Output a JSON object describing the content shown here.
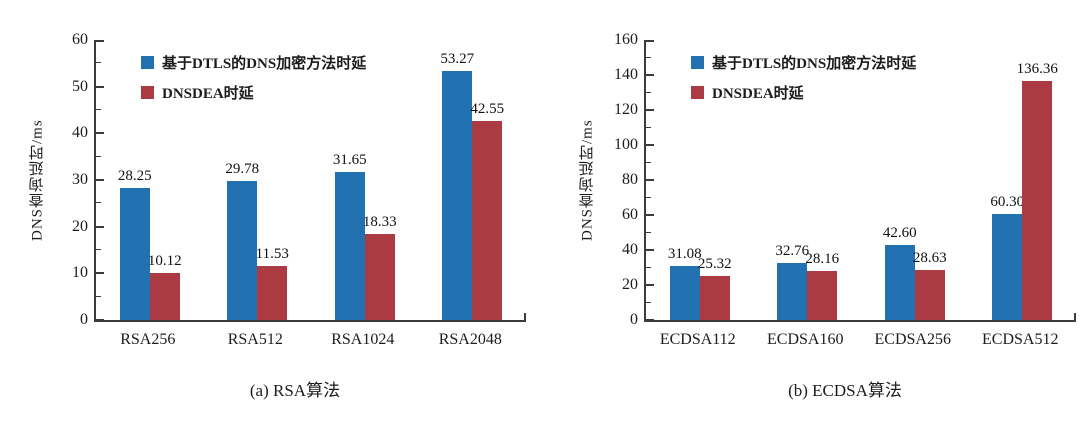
{
  "colors": {
    "series_blue": "#2272b2",
    "series_red": "#ab3a43",
    "axis": "#3c3c3c",
    "text": "#1c1c1c",
    "background": "#ffffff"
  },
  "chart_data": [
    {
      "type": "bar",
      "caption": "(a) RSA算法",
      "ylabel": "DNS查询延时/ms",
      "ylim": [
        0,
        60
      ],
      "ytick_step": 10,
      "yticks": [
        0,
        10,
        20,
        30,
        40,
        50,
        60
      ],
      "grid": false,
      "legend_position": "top-left-inside",
      "categories": [
        "RSA256",
        "RSA512",
        "RSA1024",
        "RSA2048"
      ],
      "series": [
        {
          "name": "基于DTLS的DNS加密方法时延",
          "color": "#2272b2",
          "values": [
            28.25,
            29.78,
            31.65,
            53.27
          ],
          "labels": [
            "28.25",
            "29.78",
            "31.65",
            "53.27"
          ]
        },
        {
          "name": "DNSDEA时延",
          "color": "#ab3a43",
          "values": [
            10.12,
            11.53,
            18.33,
            42.55
          ],
          "labels": [
            "10.12",
            "11.53",
            "18.33",
            "42.55"
          ]
        }
      ]
    },
    {
      "type": "bar",
      "caption": "(b) ECDSA算法",
      "ylabel": "DNS查询延时/ms",
      "ylim": [
        0,
        160
      ],
      "ytick_step": 20,
      "yticks": [
        0,
        20,
        40,
        60,
        80,
        100,
        120,
        140,
        160
      ],
      "grid": false,
      "legend_position": "top-left-inside",
      "categories": [
        "ECDSA112",
        "ECDSA160",
        "ECDSA256",
        "ECDSA512"
      ],
      "series": [
        {
          "name": "基于DTLS的DNS加密方法时延",
          "color": "#2272b2",
          "values": [
            31.08,
            32.76,
            42.6,
            60.3
          ],
          "labels": [
            "31.08",
            "32.76",
            "42.60",
            "60.30"
          ]
        },
        {
          "name": "DNSDEA时延",
          "color": "#ab3a43",
          "values": [
            25.32,
            28.16,
            28.63,
            136.36
          ],
          "labels": [
            "25.32",
            "28.16",
            "28.63",
            "136.36"
          ]
        }
      ]
    }
  ]
}
